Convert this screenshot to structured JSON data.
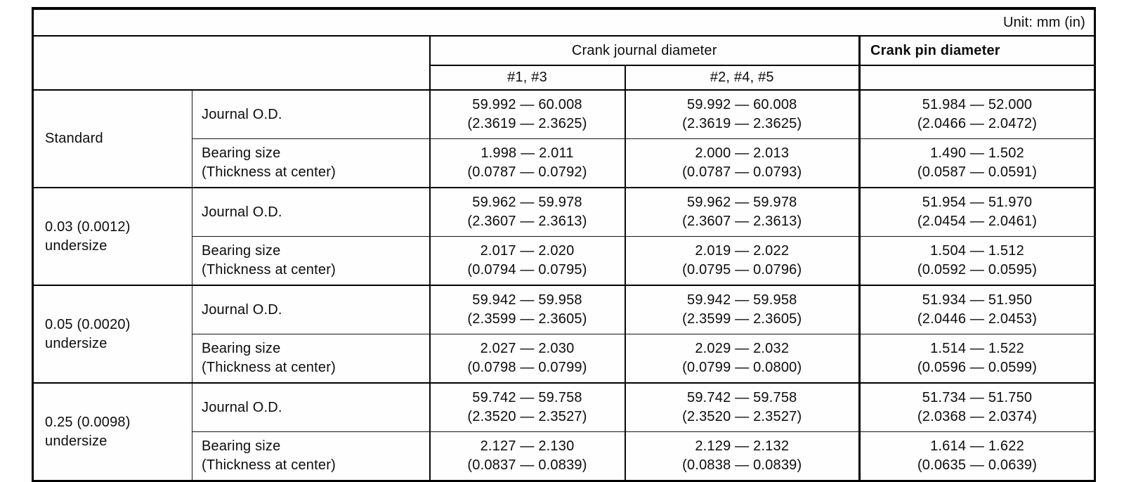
{
  "unit_label": "Unit: mm (in)",
  "table": {
    "header": {
      "journal": "Crank journal diameter",
      "journal_sub": [
        "#1, #3",
        "#2, #4, #5"
      ],
      "pin": "Crank pin diameter"
    },
    "groups": [
      {
        "label": [
          "Standard",
          ""
        ],
        "rows": [
          {
            "measure": [
              "Journal O.D.",
              ""
            ],
            "cells": [
              {
                "mm": "59.992 — 60.008",
                "in": "(2.3619 — 2.3625)"
              },
              {
                "mm": "59.992 — 60.008",
                "in": "(2.3619 — 2.3625)"
              },
              {
                "mm": "51.984 — 52.000",
                "in": "(2.0466 — 2.0472)"
              }
            ]
          },
          {
            "measure": [
              "Bearing size",
              "(Thickness at center)"
            ],
            "cells": [
              {
                "mm": "1.998 — 2.011",
                "in": "(0.0787 — 0.0792)"
              },
              {
                "mm": "2.000 — 2.013",
                "in": "(0.0787 — 0.0793)"
              },
              {
                "mm": "1.490 — 1.502",
                "in": "(0.0587 — 0.0591)"
              }
            ]
          }
        ]
      },
      {
        "label": [
          "0.03 (0.0012)",
          "undersize"
        ],
        "rows": [
          {
            "measure": [
              "Journal O.D.",
              ""
            ],
            "cells": [
              {
                "mm": "59.962 — 59.978",
                "in": "(2.3607 — 2.3613)"
              },
              {
                "mm": "59.962 — 59.978",
                "in": "(2.3607 — 2.3613)"
              },
              {
                "mm": "51.954 — 51.970",
                "in": "(2.0454 — 2.0461)"
              }
            ]
          },
          {
            "measure": [
              "Bearing size",
              "(Thickness at center)"
            ],
            "cells": [
              {
                "mm": "2.017 — 2.020",
                "in": "(0.0794 — 0.0795)"
              },
              {
                "mm": "2.019 — 2.022",
                "in": "(0.0795 — 0.0796)"
              },
              {
                "mm": "1.504 — 1.512",
                "in": "(0.0592 — 0.0595)"
              }
            ]
          }
        ]
      },
      {
        "label": [
          "0.05 (0.0020)",
          "undersize"
        ],
        "rows": [
          {
            "measure": [
              "Journal O.D.",
              ""
            ],
            "cells": [
              {
                "mm": "59.942 — 59.958",
                "in": "(2.3599 — 2.3605)"
              },
              {
                "mm": "59.942 — 59.958",
                "in": "(2.3599 — 2.3605)"
              },
              {
                "mm": "51.934 — 51.950",
                "in": "(2.0446 — 2.0453)"
              }
            ]
          },
          {
            "measure": [
              "Bearing size",
              "(Thickness at center)"
            ],
            "cells": [
              {
                "mm": "2.027 — 2.030",
                "in": "(0.0798 — 0.0799)"
              },
              {
                "mm": "2.029 — 2.032",
                "in": "(0.0799 — 0.0800)"
              },
              {
                "mm": "1.514 — 1.522",
                "in": "(0.0596 — 0.0599)"
              }
            ]
          }
        ]
      },
      {
        "label": [
          "0.25 (0.0098)",
          "undersize"
        ],
        "rows": [
          {
            "measure": [
              "Journal O.D.",
              ""
            ],
            "cells": [
              {
                "mm": "59.742 — 59.758",
                "in": "(2.3520 — 2.3527)"
              },
              {
                "mm": "59.742 — 59.758",
                "in": "(2.3520 — 2.3527)"
              },
              {
                "mm": "51.734 — 51.750",
                "in": "(2.0368 — 2.0374)"
              }
            ]
          },
          {
            "measure": [
              "Bearing size",
              "(Thickness at center)"
            ],
            "cells": [
              {
                "mm": "2.127 — 2.130",
                "in": "(0.0837 — 0.0839)"
              },
              {
                "mm": "2.129 — 2.132",
                "in": "(0.0838 — 0.0839)"
              },
              {
                "mm": "1.614 — 1.622",
                "in": "(0.0635 — 0.0639)"
              }
            ]
          }
        ]
      }
    ]
  }
}
